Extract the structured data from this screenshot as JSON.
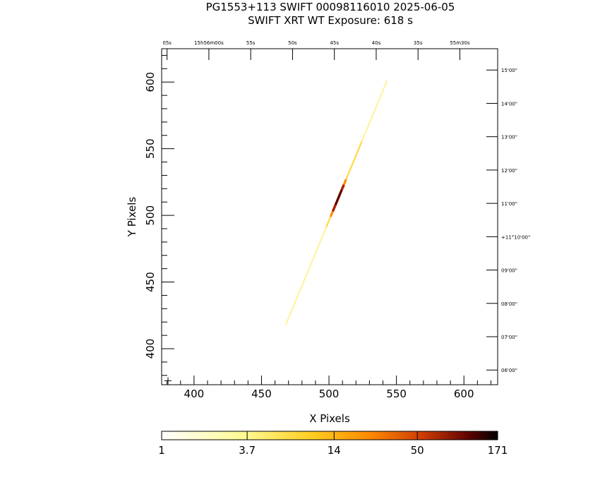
{
  "header": {
    "line1": "PG1553+113 SWIFT 00098116010 2025-06-05",
    "line2": "SWIFT XRT WT Exposure:        618 s"
  },
  "chart_data": {
    "type": "scatter",
    "title": "PG1553+113 SWIFT 00098116010 2025-06-05",
    "subtitle": "SWIFT XRT WT Exposure:        618 s",
    "xlabel": "X Pixels",
    "ylabel": "Y Pixels",
    "xlim": [
      376,
      625
    ],
    "ylim": [
      373,
      625
    ],
    "xticks": [
      400,
      450,
      500,
      550,
      600
    ],
    "yticks": [
      400,
      450,
      500,
      550,
      600
    ],
    "top_ra_ticks": [
      {
        "label": "05s",
        "x": 380
      },
      {
        "label": "15h56m00s",
        "x": 411
      },
      {
        "label": "55s",
        "x": 442
      },
      {
        "label": "50s",
        "x": 473
      },
      {
        "label": "45s",
        "x": 504
      },
      {
        "label": "40s",
        "x": 535
      },
      {
        "label": "35s",
        "x": 566
      },
      {
        "label": "55m30s",
        "x": 597
      }
    ],
    "right_dec_ticks": [
      {
        "label": "15'00\"",
        "y": 609
      },
      {
        "label": "14'00\"",
        "y": 584
      },
      {
        "label": "13'00\"",
        "y": 559
      },
      {
        "label": "12'00\"",
        "y": 534
      },
      {
        "label": "11'00\"",
        "y": 509
      },
      {
        "label": "+11°10'00\"",
        "y": 484
      },
      {
        "label": "09'00\"",
        "y": 459
      },
      {
        "label": "08'00\"",
        "y": 434
      },
      {
        "label": "07'00\"",
        "y": 409
      },
      {
        "label": "06'00\"",
        "y": 384
      }
    ],
    "streak": {
      "start": [
        468,
        418
      ],
      "end": [
        543,
        601
      ],
      "peak_center": [
        507,
        515
      ],
      "peak_range_y": [
        503,
        523
      ],
      "peak_counts": 171
    },
    "colorbar": {
      "scale": "log",
      "min": 1,
      "max": 171,
      "tick_labels": [
        "1",
        "3.7",
        "14",
        "50",
        "171"
      ],
      "tick_values": [
        1,
        3.7,
        14,
        50,
        171
      ]
    },
    "grid": false
  }
}
